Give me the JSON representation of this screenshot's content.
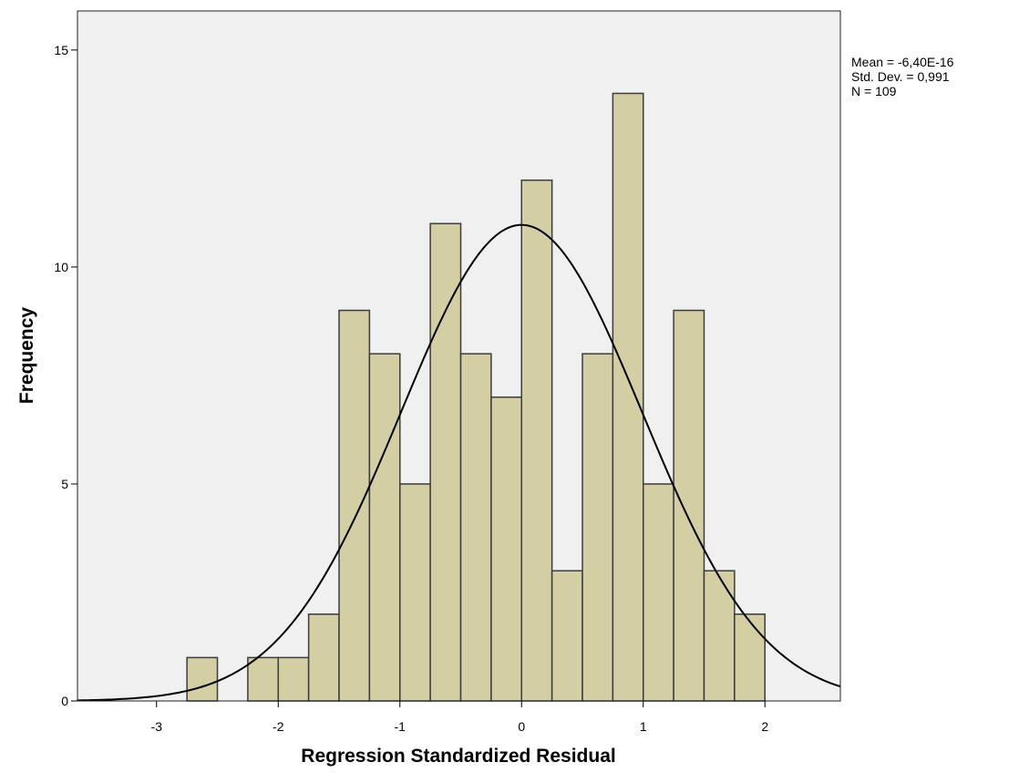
{
  "chart_data": {
    "type": "bar",
    "subtype": "histogram",
    "title": "",
    "xlabel": "Regression Standardized Residual",
    "ylabel": "Frequency",
    "xlim": [
      -3.65,
      2.62
    ],
    "ylim": [
      0,
      15.9
    ],
    "bin_width": 0.25,
    "bins": [
      {
        "x0": -2.75,
        "x1": -2.5,
        "value": 1
      },
      {
        "x0": -2.25,
        "x1": -2.0,
        "value": 1
      },
      {
        "x0": -2.0,
        "x1": -1.75,
        "value": 1
      },
      {
        "x0": -1.75,
        "x1": -1.5,
        "value": 2
      },
      {
        "x0": -1.5,
        "x1": -1.25,
        "value": 9
      },
      {
        "x0": -1.25,
        "x1": -1.0,
        "value": 8
      },
      {
        "x0": -1.0,
        "x1": -0.75,
        "value": 5
      },
      {
        "x0": -0.75,
        "x1": -0.5,
        "value": 11
      },
      {
        "x0": -0.5,
        "x1": -0.25,
        "value": 8
      },
      {
        "x0": -0.25,
        "x1": 0.0,
        "value": 7
      },
      {
        "x0": 0.0,
        "x1": 0.25,
        "value": 12
      },
      {
        "x0": 0.25,
        "x1": 0.5,
        "value": 3
      },
      {
        "x0": 0.5,
        "x1": 0.75,
        "value": 8
      },
      {
        "x0": 0.75,
        "x1": 1.0,
        "value": 14
      },
      {
        "x0": 1.0,
        "x1": 1.25,
        "value": 5
      },
      {
        "x0": 1.25,
        "x1": 1.5,
        "value": 9
      },
      {
        "x0": 1.5,
        "x1": 1.75,
        "value": 3
      },
      {
        "x0": 1.75,
        "x1": 2.0,
        "value": 2
      }
    ],
    "normal_curve": {
      "mean": 0,
      "std_dev": 0.991,
      "n": 109
    },
    "x_ticks": [
      {
        "value": -3,
        "label": "-3"
      },
      {
        "value": -2,
        "label": "-2"
      },
      {
        "value": -1,
        "label": "-1"
      },
      {
        "value": 0,
        "label": "0"
      },
      {
        "value": 1,
        "label": "1"
      },
      {
        "value": 2,
        "label": "2"
      }
    ],
    "y_ticks": [
      {
        "value": 0,
        "label": "0"
      },
      {
        "value": 5,
        "label": "5"
      },
      {
        "value": 10,
        "label": "10"
      },
      {
        "value": 15,
        "label": "15"
      }
    ],
    "stats": {
      "mean": "Mean = -6,40E-16",
      "std_dev": "Std. Dev. = 0,991",
      "n": "N = 109"
    },
    "grid": false,
    "colors": {
      "plot_background": "#f0f0f0",
      "bar_fill": "#d3cea3",
      "bar_stroke": "#3c3c3c",
      "curve": "#000000"
    }
  }
}
